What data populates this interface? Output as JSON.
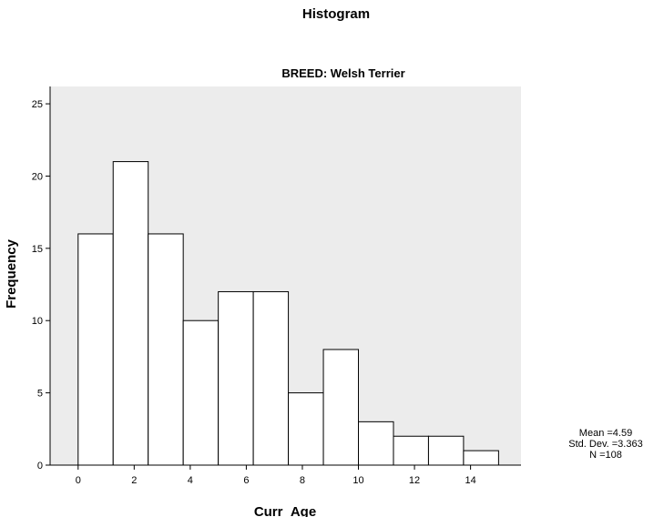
{
  "chart_data": {
    "type": "bar",
    "title": "Histogram",
    "subtitle": "BREED: Welsh Terrier",
    "xlabel": "Curr_Age",
    "ylabel": "Frequency",
    "bin_width": 1.25,
    "bins": [
      {
        "x0": 0.0,
        "x1": 1.25,
        "count": 16
      },
      {
        "x0": 1.25,
        "x1": 2.5,
        "count": 21
      },
      {
        "x0": 2.5,
        "x1": 3.75,
        "count": 16
      },
      {
        "x0": 3.75,
        "x1": 5.0,
        "count": 10
      },
      {
        "x0": 5.0,
        "x1": 6.25,
        "count": 12
      },
      {
        "x0": 6.25,
        "x1": 7.5,
        "count": 12
      },
      {
        "x0": 7.5,
        "x1": 8.75,
        "count": 5
      },
      {
        "x0": 8.75,
        "x1": 10.0,
        "count": 8
      },
      {
        "x0": 10.0,
        "x1": 11.25,
        "count": 3
      },
      {
        "x0": 11.25,
        "x1": 12.5,
        "count": 2
      },
      {
        "x0": 12.5,
        "x1": 13.75,
        "count": 2
      },
      {
        "x0": 13.75,
        "x1": 15.0,
        "count": 1
      }
    ],
    "xticks": [
      0,
      2,
      4,
      6,
      8,
      10,
      12,
      14
    ],
    "yticks": [
      0,
      5,
      10,
      15,
      20,
      25
    ],
    "xlim": [
      -1.0,
      15.8
    ],
    "ylim": [
      0,
      26.2
    ],
    "grid": false,
    "plot_background": "#ececec",
    "bar_fill": "#ffffff",
    "bar_stroke": "#000000"
  },
  "stats": {
    "mean": "Mean =4.59",
    "std_dev": "Std. Dev. =3.363",
    "n": "N =108"
  }
}
